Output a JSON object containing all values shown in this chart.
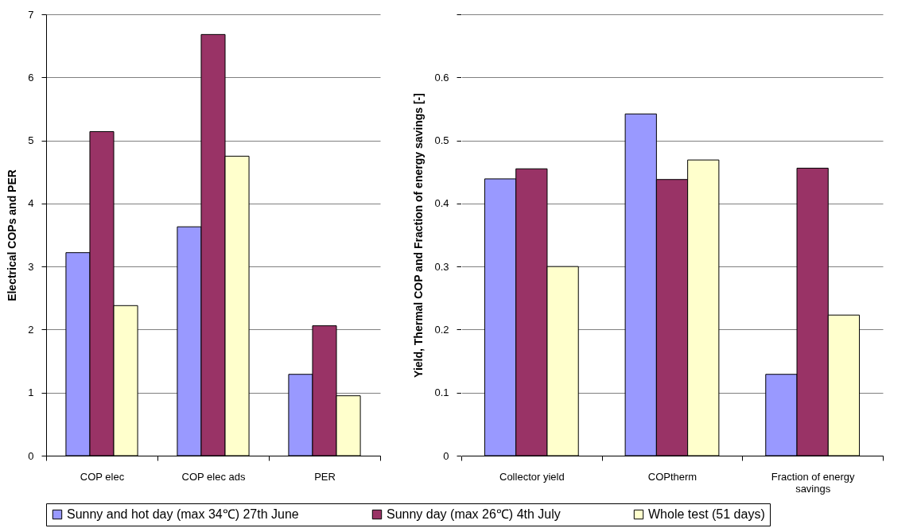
{
  "chart_data": [
    {
      "type": "bar",
      "ylabel": "Electrical COPs and PER",
      "categories": [
        "COP elec",
        "COP elec ads",
        "PER"
      ],
      "series": [
        {
          "name": "Sunny and hot day (max 34℃) 27th June",
          "color": "#9999ff",
          "values": [
            3.22,
            3.63,
            1.29
          ]
        },
        {
          "name": "Sunny day (max 26℃) 4th July",
          "color": "#993366",
          "values": [
            5.14,
            6.68,
            2.06
          ]
        },
        {
          "name": "Whole test (51 days)",
          "color": "#ffffcc",
          "values": [
            2.38,
            4.75,
            0.95
          ]
        }
      ],
      "ylim": [
        0,
        7
      ],
      "yticks": [
        0,
        1,
        2,
        3,
        4,
        5,
        6,
        7
      ],
      "grid": "y",
      "legend": "bottom"
    },
    {
      "type": "bar",
      "ylabel": "Yield, Thermal COP and Fraction of energy savings  [-]",
      "categories": [
        "Collector yield",
        "COPtherm",
        "Fraction of energy savings"
      ],
      "series": [
        {
          "name": "Sunny and hot day (max 34℃) 27th June",
          "color": "#9999ff",
          "values": [
            0.439,
            0.542,
            0.129
          ]
        },
        {
          "name": "Sunny day (max 26℃) 4th July",
          "color": "#993366",
          "values": [
            0.455,
            0.438,
            0.456
          ]
        },
        {
          "name": "Whole test (51 days)",
          "color": "#ffffcc",
          "values": [
            0.3,
            0.469,
            0.223
          ]
        }
      ],
      "ylim": [
        0,
        0.7
      ],
      "yticks": [
        0,
        0.1,
        0.2,
        0.3,
        0.4,
        0.5,
        0.6,
        {
          "value": 0.7,
          "label": null
        }
      ],
      "grid": "y",
      "legend": "bottom"
    }
  ]
}
